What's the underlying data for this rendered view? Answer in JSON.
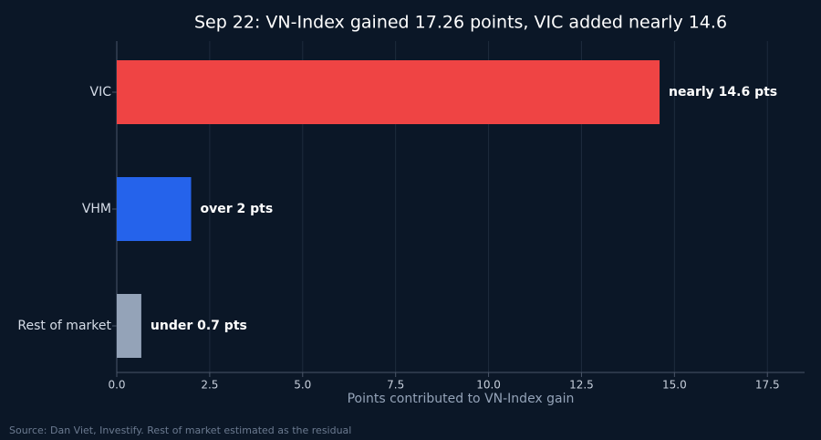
{
  "chart_data": {
    "type": "hbar",
    "title": "Sep 22: VN-Index gained 17.26 points, VIC added nearly 14.6",
    "x_label": "Points contributed to VN-Index gain",
    "source": "Source: Dan Viet, Investify. Rest of market estimated as the residual",
    "categories": [
      "VIC",
      "VHM",
      "Rest of market"
    ],
    "values": [
      14.6,
      2,
      0.66
    ],
    "value_labels": [
      "nearly 14.6 pts",
      "over 2 pts",
      "under 0.7 pts"
    ],
    "colors": [
      "#ef4444",
      "#2563eb",
      "#94a3b8"
    ],
    "xlim": [
      0,
      18.5
    ],
    "xticks": [
      {
        "value": 0,
        "label": "0.0"
      },
      2.5,
      {
        "value": 5,
        "label": "5.0"
      },
      7.5,
      {
        "value": 10,
        "label": "10.0"
      },
      12.5,
      {
        "value": 15,
        "label": "15.0"
      },
      17.5
    ],
    "grid": true
  }
}
